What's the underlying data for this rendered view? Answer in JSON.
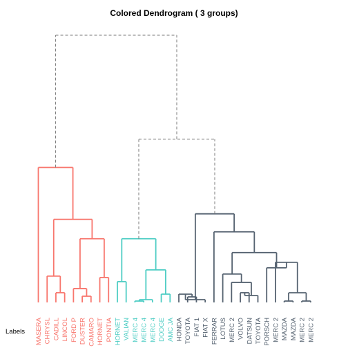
{
  "chart_data": {
    "type": "dendrogram",
    "title": "Colored Dendrogram ( 3  groups)",
    "ylabel": "Labels",
    "group_colors": [
      "#F8766D",
      "#4ECDC4",
      "#556270"
    ],
    "dashed_color": "#7a7a7a",
    "labels": [
      {
        "text": "MASERA",
        "group": 0
      },
      {
        "text": "CHRYSL",
        "group": 0
      },
      {
        "text": "CADILL",
        "group": 0
      },
      {
        "text": "LINCOL",
        "group": 0
      },
      {
        "text": "FORD P",
        "group": 0
      },
      {
        "text": "DUSTER",
        "group": 0
      },
      {
        "text": "CAMARO",
        "group": 0
      },
      {
        "text": "HORNET",
        "group": 0
      },
      {
        "text": "PONTIA",
        "group": 0
      },
      {
        "text": "HORNET",
        "group": 1
      },
      {
        "text": "VALIAN",
        "group": 1
      },
      {
        "text": "MERC 4",
        "group": 1
      },
      {
        "text": "MERC 4",
        "group": 1
      },
      {
        "text": "MERC 4",
        "group": 1
      },
      {
        "text": "DODGE",
        "group": 1
      },
      {
        "text": "AMC JA",
        "group": 1
      },
      {
        "text": "HONDA",
        "group": 2
      },
      {
        "text": "TOYOTA",
        "group": 2
      },
      {
        "text": "FIAT 1",
        "group": 2
      },
      {
        "text": "FIAT X",
        "group": 2
      },
      {
        "text": "FERRAR",
        "group": 2
      },
      {
        "text": "LOTUS",
        "group": 2
      },
      {
        "text": "MERC 2",
        "group": 2
      },
      {
        "text": "VOLVO",
        "group": 2
      },
      {
        "text": "DATSUN",
        "group": 2
      },
      {
        "text": "TOYOTA",
        "group": 2
      },
      {
        "text": "PORSCH",
        "group": 2
      },
      {
        "text": "MERC 2",
        "group": 2
      },
      {
        "text": "MAZDA",
        "group": 2
      },
      {
        "text": "MAZDA",
        "group": 2
      },
      {
        "text": "MERC 2",
        "group": 2
      },
      {
        "text": "MERC 2",
        "group": 2
      }
    ],
    "merges": [
      {
        "a": 2,
        "b": 3,
        "h": 14
      },
      {
        "a": 5,
        "b": 6,
        "h": 9
      },
      {
        "a": 4,
        "b": "n1",
        "h": 20
      },
      {
        "a": 1,
        "b": "n0",
        "h": 38
      },
      {
        "a": 7,
        "b": 8,
        "h": 36
      },
      {
        "a": "n2",
        "b": "n4",
        "h": 92
      },
      {
        "a": "n3",
        "b": "n5",
        "h": 120
      },
      {
        "a": 0,
        "b": "n6",
        "h": 195
      },
      {
        "a": 9,
        "b": 10,
        "h": 30
      },
      {
        "a": 11,
        "b": 12,
        "h": 2
      },
      {
        "a": "n9",
        "b": 13,
        "h": 4
      },
      {
        "a": 14,
        "b": 15,
        "h": 12
      },
      {
        "a": "n10",
        "b": "n11",
        "h": 47
      },
      {
        "a": "n8",
        "b": "n12",
        "h": 92
      },
      {
        "a": 17,
        "b": 18,
        "h": 8
      },
      {
        "a": 16,
        "b": "n14",
        "h": 12
      },
      {
        "a": 19,
        "b": "n15",
        "h": 4
      },
      {
        "a": 23,
        "b": 24,
        "h": 14
      },
      {
        "a": "n17",
        "b": 25,
        "h": 10
      },
      {
        "a": 22,
        "b": "n18",
        "h": 29
      },
      {
        "a": 21,
        "b": "n19",
        "h": 41
      },
      {
        "a": 28,
        "b": 29,
        "h": 2
      },
      {
        "a": 30,
        "b": 31,
        "h": 2
      },
      {
        "a": "n21",
        "b": "n22",
        "h": 14
      },
      {
        "a": 27,
        "b": "n23",
        "h": 58
      },
      {
        "a": 26,
        "b": "n24",
        "h": 50
      },
      {
        "a": "n20",
        "b": "n25",
        "h": 72
      },
      {
        "a": 20,
        "b": "n26",
        "h": 102
      },
      {
        "a": "n16",
        "b": "n27",
        "h": 128
      },
      {
        "a": "n13",
        "b": "n28",
        "h": 236
      },
      {
        "a": "n7",
        "b": "n29",
        "h": 386
      }
    ],
    "ylim": [
      0,
      386
    ],
    "dashed_merges": [
      29,
      30
    ]
  }
}
